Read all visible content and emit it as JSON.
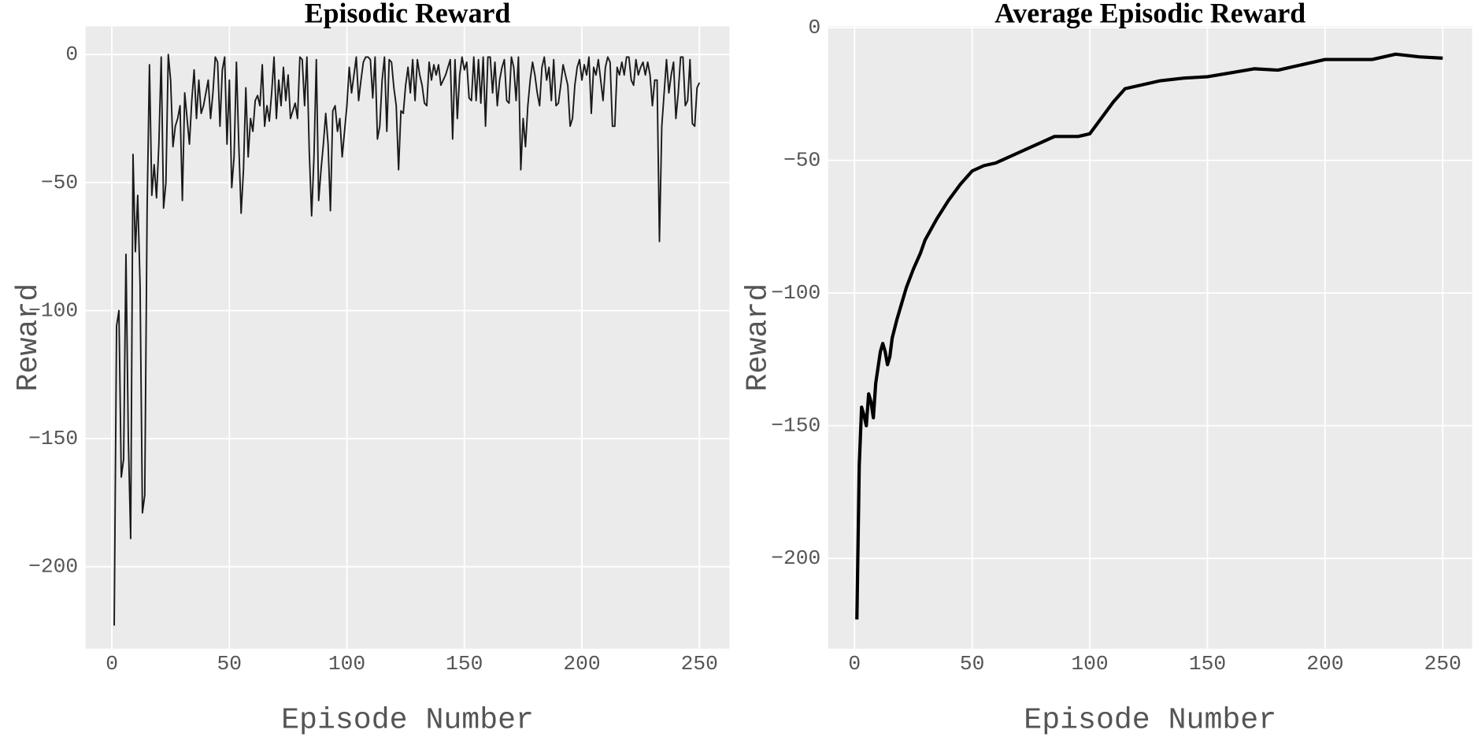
{
  "chart_data": [
    {
      "type": "line",
      "title": "Episodic Reward",
      "xlabel": "Episode Number",
      "ylabel": "Reward",
      "color": "#1a1a1a",
      "line_width": 1.6,
      "grid": true,
      "xlim": [
        -11.2,
        262.8
      ],
      "ylim": [
        -232,
        11
      ],
      "xticks": [
        0,
        50,
        100,
        150,
        200,
        250
      ],
      "yticks": [
        {
          "value": 0,
          "label": "0"
        },
        {
          "value": -50,
          "label": "−50"
        },
        {
          "value": -100,
          "label": "−100"
        },
        {
          "value": -150,
          "label": "−150"
        },
        {
          "value": -200,
          "label": "−200"
        }
      ],
      "x": [
        1,
        2,
        3,
        4,
        5,
        6,
        7,
        8,
        9,
        10,
        11,
        12,
        13,
        14,
        15,
        16,
        17,
        18,
        19,
        20,
        21,
        22,
        23,
        24,
        25,
        26,
        27,
        28,
        29,
        30,
        31,
        32,
        33,
        34,
        35,
        36,
        37,
        38,
        39,
        40,
        41,
        42,
        43,
        44,
        45,
        46,
        47,
        48,
        49,
        50,
        51,
        52,
        53,
        54,
        55,
        56,
        57,
        58,
        59,
        60,
        61,
        62,
        63,
        64,
        65,
        66,
        67,
        68,
        69,
        70,
        71,
        72,
        73,
        74,
        75,
        76,
        77,
        78,
        79,
        80,
        81,
        82,
        83,
        84,
        85,
        86,
        87,
        88,
        89,
        90,
        91,
        92,
        93,
        94,
        95,
        96,
        97,
        98,
        99,
        100,
        101,
        102,
        103,
        104,
        105,
        106,
        107,
        108,
        109,
        110,
        111,
        112,
        113,
        114,
        115,
        116,
        117,
        118,
        119,
        120,
        121,
        122,
        123,
        124,
        125,
        126,
        127,
        128,
        129,
        130,
        131,
        132,
        133,
        134,
        135,
        136,
        137,
        138,
        139,
        140,
        141,
        142,
        143,
        144,
        145,
        146,
        147,
        148,
        149,
        150,
        151,
        152,
        153,
        154,
        155,
        156,
        157,
        158,
        159,
        160,
        161,
        162,
        163,
        164,
        165,
        166,
        167,
        168,
        169,
        170,
        171,
        172,
        173,
        174,
        175,
        176,
        177,
        178,
        179,
        180,
        181,
        182,
        183,
        184,
        185,
        186,
        187,
        188,
        189,
        190,
        191,
        192,
        193,
        194,
        195,
        196,
        197,
        198,
        199,
        200,
        201,
        202,
        203,
        204,
        205,
        206,
        207,
        208,
        209,
        210,
        211,
        212,
        213,
        214,
        215,
        216,
        217,
        218,
        219,
        220,
        221,
        222,
        223,
        224,
        225,
        226,
        227,
        228,
        229,
        230,
        231,
        232,
        233,
        234,
        235,
        236,
        237,
        238,
        239,
        240,
        241,
        242,
        243,
        244,
        245,
        246,
        247,
        248,
        249,
        250
      ],
      "values": [
        -223,
        -106,
        -100,
        -165,
        -158,
        -78,
        -150,
        -189,
        -39,
        -77,
        -55,
        -90,
        -179,
        -172,
        -60,
        -4,
        -55,
        -43,
        -56,
        -35,
        -1,
        -60,
        -50,
        0,
        -10,
        -36,
        -28,
        -25,
        -20,
        -57,
        -15,
        -25,
        -35,
        -18,
        -6,
        -25,
        -10,
        -23,
        -20,
        -15,
        -10,
        -25,
        -15,
        -1,
        -3,
        -28,
        -6,
        -1,
        -35,
        -10,
        -52,
        -40,
        -3,
        -35,
        -62,
        -45,
        -13,
        -40,
        -25,
        -30,
        -18,
        -16,
        -20,
        -4,
        -28,
        -20,
        -26,
        -15,
        -1,
        -25,
        -10,
        -20,
        -5,
        -18,
        -8,
        -25,
        -22,
        -19,
        -25,
        -1,
        -2,
        -20,
        -1,
        -38,
        -63,
        -40,
        -2,
        -57,
        -45,
        -35,
        -23,
        -35,
        -61,
        -22,
        -20,
        -30,
        -25,
        -40,
        -30,
        -20,
        -5,
        -15,
        -8,
        -1,
        -18,
        -10,
        -3,
        -1,
        -1,
        -2,
        -17,
        -1,
        -33,
        -28,
        -10,
        -1,
        -30,
        -2,
        -3,
        -13,
        -20,
        -45,
        -22,
        -23,
        -12,
        -5,
        -15,
        -2,
        -18,
        -2,
        -8,
        -12,
        -19,
        -20,
        -3,
        -10,
        -4,
        -8,
        -4,
        -12,
        -10,
        -8,
        -5,
        -2,
        -33,
        -2,
        -25,
        -8,
        -1,
        -6,
        -3,
        -17,
        -18,
        -1,
        -18,
        -2,
        -19,
        -1,
        -28,
        -1,
        -1,
        -15,
        -3,
        -20,
        -10,
        -5,
        -2,
        -18,
        -19,
        -1,
        -5,
        -18,
        -1,
        -45,
        -25,
        -36,
        -20,
        -10,
        -3,
        -8,
        -15,
        -20,
        -5,
        -1,
        -10,
        -5,
        -18,
        -2,
        -20,
        -19,
        -12,
        -4,
        -8,
        -12,
        -28,
        -25,
        -12,
        -5,
        -2,
        -10,
        -4,
        -8,
        -1,
        -23,
        -5,
        -8,
        -2,
        -10,
        -18,
        -5,
        -1,
        -3,
        -28,
        -28,
        -5,
        -8,
        -3,
        -8,
        -1,
        -1,
        -10,
        -12,
        -2,
        -8,
        -5,
        -3,
        -8,
        -3,
        -8,
        -20,
        -10,
        -10,
        -73,
        -28,
        -15,
        -2,
        -15,
        -8,
        -3,
        -25,
        -15,
        -1,
        -1,
        -20,
        -18,
        -2,
        -27,
        -28,
        -13,
        -11
      ]
    },
    {
      "type": "line",
      "title": "Average Episodic Reward",
      "xlabel": "Episode Number",
      "ylabel": "Reward",
      "color": "#000000",
      "line_width": 3.5,
      "grid": true,
      "xlim": [
        -11.2,
        262.5
      ],
      "ylim": [
        -234,
        0.5
      ],
      "xticks": [
        0,
        50,
        100,
        150,
        200,
        250
      ],
      "yticks": [
        {
          "value": 0,
          "label": "0"
        },
        {
          "value": -50,
          "label": "−50"
        },
        {
          "value": -100,
          "label": "−100"
        },
        {
          "value": -150,
          "label": "−150"
        },
        {
          "value": -200,
          "label": "−200"
        }
      ],
      "x": [
        1,
        2,
        3,
        4,
        5,
        6,
        7,
        8,
        9,
        10,
        11,
        12,
        13,
        14,
        15,
        16,
        18,
        20,
        22,
        25,
        28,
        30,
        35,
        40,
        45,
        50,
        55,
        60,
        65,
        70,
        75,
        80,
        85,
        90,
        95,
        100,
        105,
        110,
        115,
        120,
        130,
        140,
        150,
        160,
        170,
        180,
        190,
        200,
        210,
        220,
        230,
        240,
        250
      ],
      "values": [
        -223,
        -165,
        -143,
        -146,
        -150,
        -138,
        -141,
        -147,
        -134,
        -128,
        -122,
        -119,
        -122,
        -127,
        -124,
        -117,
        -110,
        -104,
        -98,
        -91,
        -85,
        -80,
        -72,
        -65,
        -59,
        -54,
        -52,
        -51,
        -49,
        -47,
        -45,
        -43,
        -41,
        -41,
        -41,
        -40,
        -34,
        -28,
        -23,
        -22,
        -20,
        -19,
        -18.5,
        -17,
        -15.5,
        -16,
        -14,
        -12,
        -12,
        -12,
        -10,
        -11,
        -11.5
      ]
    }
  ]
}
